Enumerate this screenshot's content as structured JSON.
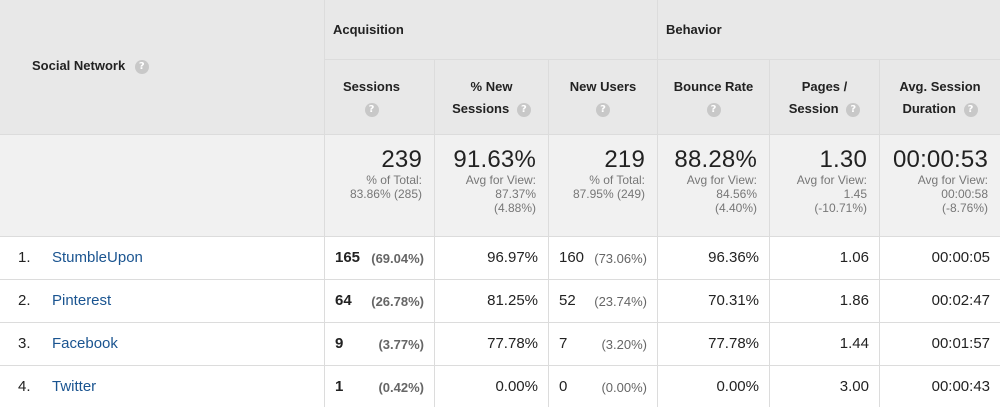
{
  "header": {
    "social_network_label": "Social Network",
    "groups": {
      "acquisition": "Acquisition",
      "behavior": "Behavior"
    },
    "columns": {
      "sessions": "Sessions",
      "pct_new_sessions": [
        "% New",
        "Sessions"
      ],
      "new_users": "New Users",
      "bounce_rate": "Bounce Rate",
      "pages_session": [
        "Pages /",
        "Session"
      ],
      "avg_session_duration": [
        "Avg. Session",
        "Duration"
      ]
    },
    "help_glyph": "?",
    "sort_glyph": "↓"
  },
  "totals": {
    "sessions": {
      "value": "239",
      "sub1": "% of Total:",
      "sub2": "83.86% (285)"
    },
    "pct_new_sessions": {
      "value": "91.63%",
      "sub1": "Avg for View:",
      "sub2": "87.37%",
      "sub3": "(4.88%)"
    },
    "new_users": {
      "value": "219",
      "sub1": "% of Total:",
      "sub2": "87.95% (249)"
    },
    "bounce_rate": {
      "value": "88.28%",
      "sub1": "Avg for View:",
      "sub2": "84.56%",
      "sub3": "(4.40%)"
    },
    "pages_session": {
      "value": "1.30",
      "sub1": "Avg for View:",
      "sub2": "1.45",
      "sub3": "(-10.71%)"
    },
    "avg_session_duration": {
      "value": "00:00:53",
      "sub1": "Avg for View:",
      "sub2": "00:00:58",
      "sub3": "(-8.76%)"
    }
  },
  "rows": [
    {
      "num": "1.",
      "name": "StumbleUpon",
      "sessions": "165",
      "sessions_pct": "(69.04%)",
      "pct_new": "96.97%",
      "new_users": "160",
      "new_users_pct": "(73.06%)",
      "bounce": "96.36%",
      "pages": "1.06",
      "duration": "00:00:05"
    },
    {
      "num": "2.",
      "name": "Pinterest",
      "sessions": "64",
      "sessions_pct": "(26.78%)",
      "pct_new": "81.25%",
      "new_users": "52",
      "new_users_pct": "(23.74%)",
      "bounce": "70.31%",
      "pages": "1.86",
      "duration": "00:02:47"
    },
    {
      "num": "3.",
      "name": "Facebook",
      "sessions": "9",
      "sessions_pct": "(3.77%)",
      "pct_new": "77.78%",
      "new_users": "7",
      "new_users_pct": "(3.20%)",
      "bounce": "77.78%",
      "pages": "1.44",
      "duration": "00:01:57"
    },
    {
      "num": "4.",
      "name": "Twitter",
      "sessions": "1",
      "sessions_pct": "(0.42%)",
      "pct_new": "0.00%",
      "new_users": "0",
      "new_users_pct": "(0.00%)",
      "bounce": "0.00%",
      "pages": "3.00",
      "duration": "00:00:43"
    }
  ]
}
